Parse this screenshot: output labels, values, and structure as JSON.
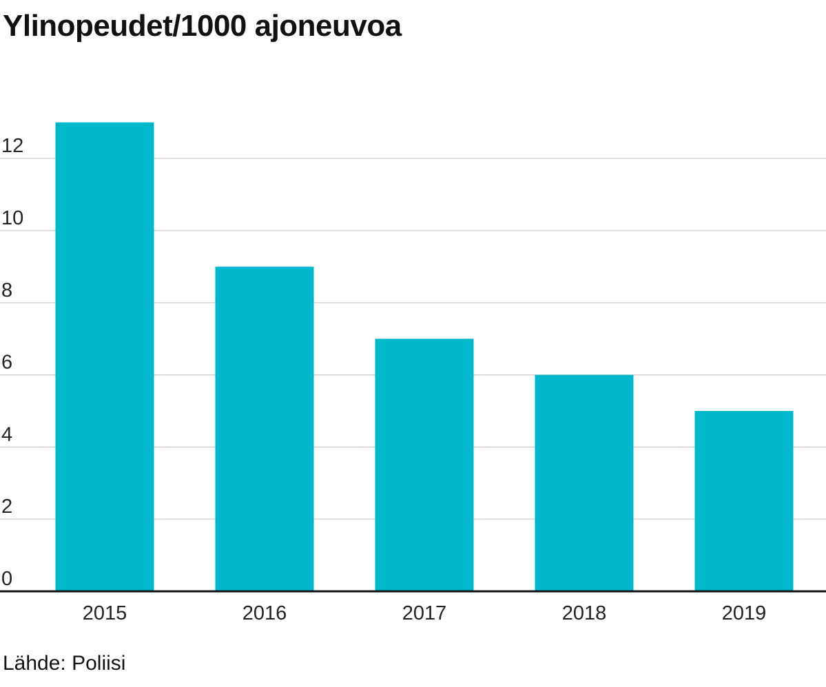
{
  "chart_data": {
    "type": "bar",
    "title": "Ylinopeudet/1000 ajoneuvoa",
    "categories": [
      "2015",
      "2016",
      "2017",
      "2018",
      "2019"
    ],
    "values": [
      13,
      9,
      7,
      6,
      5
    ],
    "xlabel": "",
    "ylabel": "",
    "ylim": [
      0,
      13
    ],
    "yticks": [
      0,
      2,
      4,
      6,
      8,
      10,
      12
    ],
    "grid": true,
    "bar_color": "#00b8cc",
    "source": "Lähde: Poliisi"
  }
}
